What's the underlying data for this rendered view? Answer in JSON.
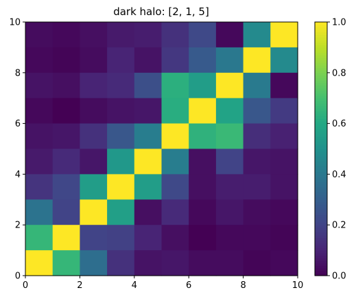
{
  "chart_data": {
    "type": "heatmap",
    "title": "dark halo: [2, 1, 5]",
    "xlabel": "",
    "ylabel": "",
    "xlim": [
      0,
      10
    ],
    "ylim": [
      0,
      10
    ],
    "xticks": [
      "0",
      "2",
      "4",
      "6",
      "8",
      "10"
    ],
    "yticks": [
      "0",
      "2",
      "4",
      "6",
      "8",
      "10"
    ],
    "colorbar": {
      "colormap": "viridis",
      "range": [
        0,
        1
      ],
      "ticks": [
        "0.0",
        "0.2",
        "0.4",
        "0.6",
        "0.8",
        "1.0"
      ]
    },
    "rows_top_to_bottom": [
      [
        0.03,
        0.02,
        0.04,
        0.07,
        0.08,
        0.14,
        0.22,
        0.02,
        0.47,
        1.0
      ],
      [
        0.02,
        0.01,
        0.03,
        0.1,
        0.05,
        0.16,
        0.28,
        0.4,
        1.0,
        0.47
      ],
      [
        0.05,
        0.04,
        0.1,
        0.12,
        0.24,
        0.63,
        0.55,
        1.0,
        0.41,
        0.02
      ],
      [
        0.02,
        0.0,
        0.03,
        0.05,
        0.06,
        0.62,
        1.0,
        0.58,
        0.27,
        0.17
      ],
      [
        0.05,
        0.06,
        0.14,
        0.27,
        0.42,
        1.0,
        0.64,
        0.67,
        0.13,
        0.09
      ],
      [
        0.07,
        0.12,
        0.06,
        0.53,
        1.0,
        0.42,
        0.04,
        0.2,
        0.06,
        0.05
      ],
      [
        0.15,
        0.21,
        0.55,
        1.0,
        0.55,
        0.22,
        0.04,
        0.08,
        0.08,
        0.05
      ],
      [
        0.38,
        0.2,
        1.0,
        0.56,
        0.04,
        0.12,
        0.02,
        0.06,
        0.03,
        0.02
      ],
      [
        0.66,
        1.0,
        0.2,
        0.19,
        0.1,
        0.04,
        0.0,
        0.02,
        0.02,
        0.01
      ],
      [
        1.0,
        0.66,
        0.36,
        0.14,
        0.05,
        0.06,
        0.03,
        0.03,
        0.01,
        0.02
      ]
    ]
  }
}
